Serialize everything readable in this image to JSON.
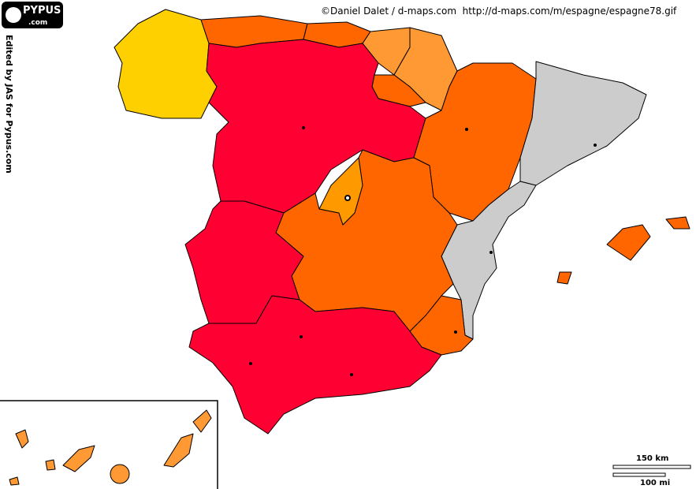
{
  "logo": {
    "name": "PYPUS",
    "domain": ".com"
  },
  "credit": "©Daniel Dalet / d-maps.com  http://d-maps.com/m/espagne/espagne78.gif",
  "edited_by": "Edited by JAS for Pypus.com",
  "scale": {
    "km": "150 km",
    "mi": "100 mi"
  }
}
